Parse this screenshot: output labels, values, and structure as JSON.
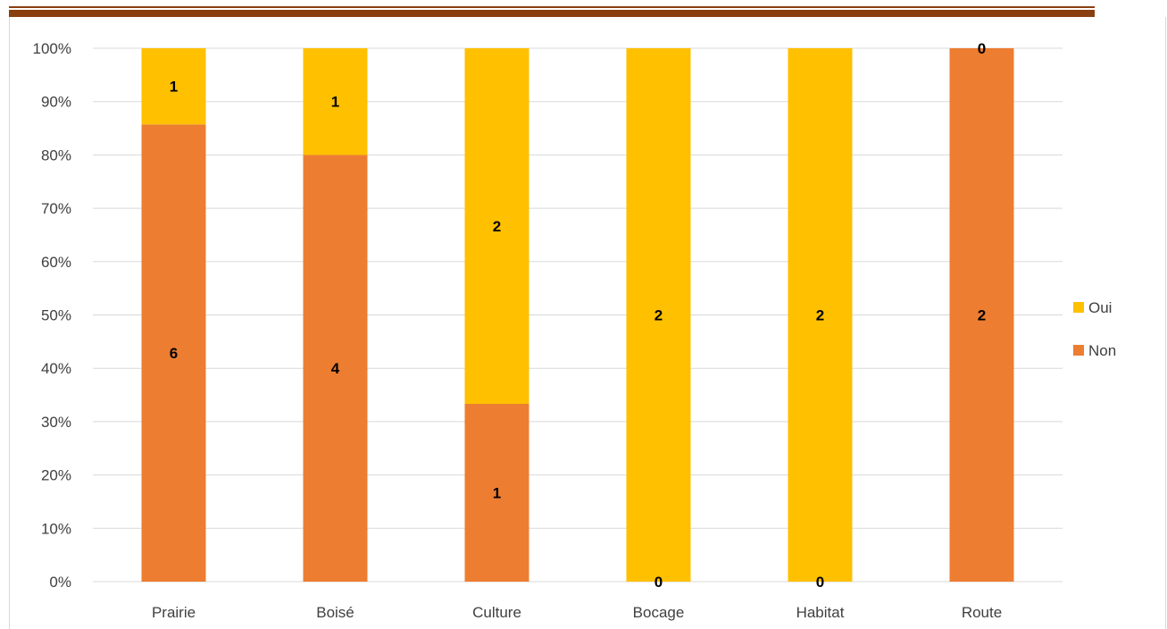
{
  "chart_data": {
    "type": "bar",
    "stacked": true,
    "percent_stacked": true,
    "categories": [
      "Prairie",
      "Boisé",
      "Culture",
      "Bocage",
      "Habitat",
      "Route"
    ],
    "series": [
      {
        "name": "Non",
        "color": "#ED7D31",
        "values": [
          6,
          4,
          1,
          0,
          0,
          2
        ]
      },
      {
        "name": "Oui",
        "color": "#FFC000",
        "values": [
          1,
          1,
          2,
          2,
          2,
          0
        ]
      }
    ],
    "y_ticks": [
      "0%",
      "10%",
      "20%",
      "30%",
      "40%",
      "50%",
      "60%",
      "70%",
      "80%",
      "90%",
      "100%"
    ],
    "ylim": [
      0,
      100
    ],
    "grid": true,
    "legend_position": "right",
    "legend": [
      {
        "label": "Oui",
        "color": "#FFC000"
      },
      {
        "label": "Non",
        "color": "#ED7D31"
      }
    ]
  },
  "colors": {
    "header_rule": "#8a3f10",
    "grid": "#d9d9d9",
    "axis_text": "#404040",
    "data_label": "#000000"
  }
}
